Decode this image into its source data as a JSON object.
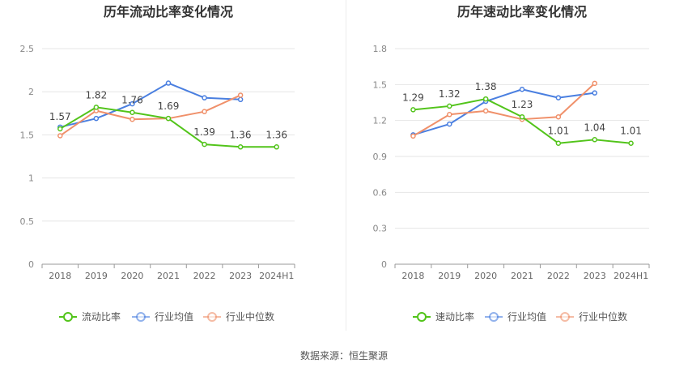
{
  "source_prefix": "数据来源：",
  "source_name": "恒生聚源",
  "chart_data": [
    {
      "type": "line",
      "title": "历年流动比率变化情况",
      "categories": [
        "2018",
        "2019",
        "2020",
        "2021",
        "2022",
        "2023",
        "2024H1"
      ],
      "ylim": [
        0,
        2.5
      ],
      "yticks": [
        "0",
        "0.5",
        "1",
        "1.5",
        "2",
        "2.5"
      ],
      "grid": true,
      "legend_position": "bottom",
      "series": [
        {
          "name": "流动比率",
          "color": "#52c41a",
          "values": [
            1.57,
            1.82,
            1.76,
            1.69,
            1.39,
            1.36,
            1.36
          ],
          "labels": [
            "1.57",
            "1.82",
            "1.76",
            "1.69",
            "1.39",
            "1.36",
            "1.36"
          ]
        },
        {
          "name": "行业均值",
          "color": "#4a7fe0",
          "values": [
            1.59,
            1.69,
            1.86,
            2.1,
            1.93,
            1.91,
            null
          ]
        },
        {
          "name": "行业中位数",
          "color": "#f0906a",
          "values": [
            1.49,
            1.78,
            1.68,
            1.69,
            1.77,
            1.96,
            null
          ]
        }
      ]
    },
    {
      "type": "line",
      "title": "历年速动比率变化情况",
      "categories": [
        "2018",
        "2019",
        "2020",
        "2021",
        "2022",
        "2023",
        "2024H1"
      ],
      "ylim": [
        0,
        1.8
      ],
      "yticks": [
        "0",
        "0.3",
        "0.6",
        "0.9",
        "1.2",
        "1.5",
        "1.8"
      ],
      "grid": true,
      "legend_position": "bottom",
      "series": [
        {
          "name": "速动比率",
          "color": "#52c41a",
          "values": [
            1.29,
            1.32,
            1.38,
            1.23,
            1.01,
            1.04,
            1.01
          ],
          "labels": [
            "1.29",
            "1.32",
            "1.38",
            "1.23",
            "1.01",
            "1.04",
            "1.01"
          ]
        },
        {
          "name": "行业均值",
          "color": "#4a7fe0",
          "values": [
            1.08,
            1.17,
            1.36,
            1.46,
            1.39,
            1.43,
            null
          ]
        },
        {
          "name": "行业中位数",
          "color": "#f0906a",
          "values": [
            1.07,
            1.25,
            1.28,
            1.21,
            1.23,
            1.51,
            null
          ]
        }
      ]
    }
  ]
}
